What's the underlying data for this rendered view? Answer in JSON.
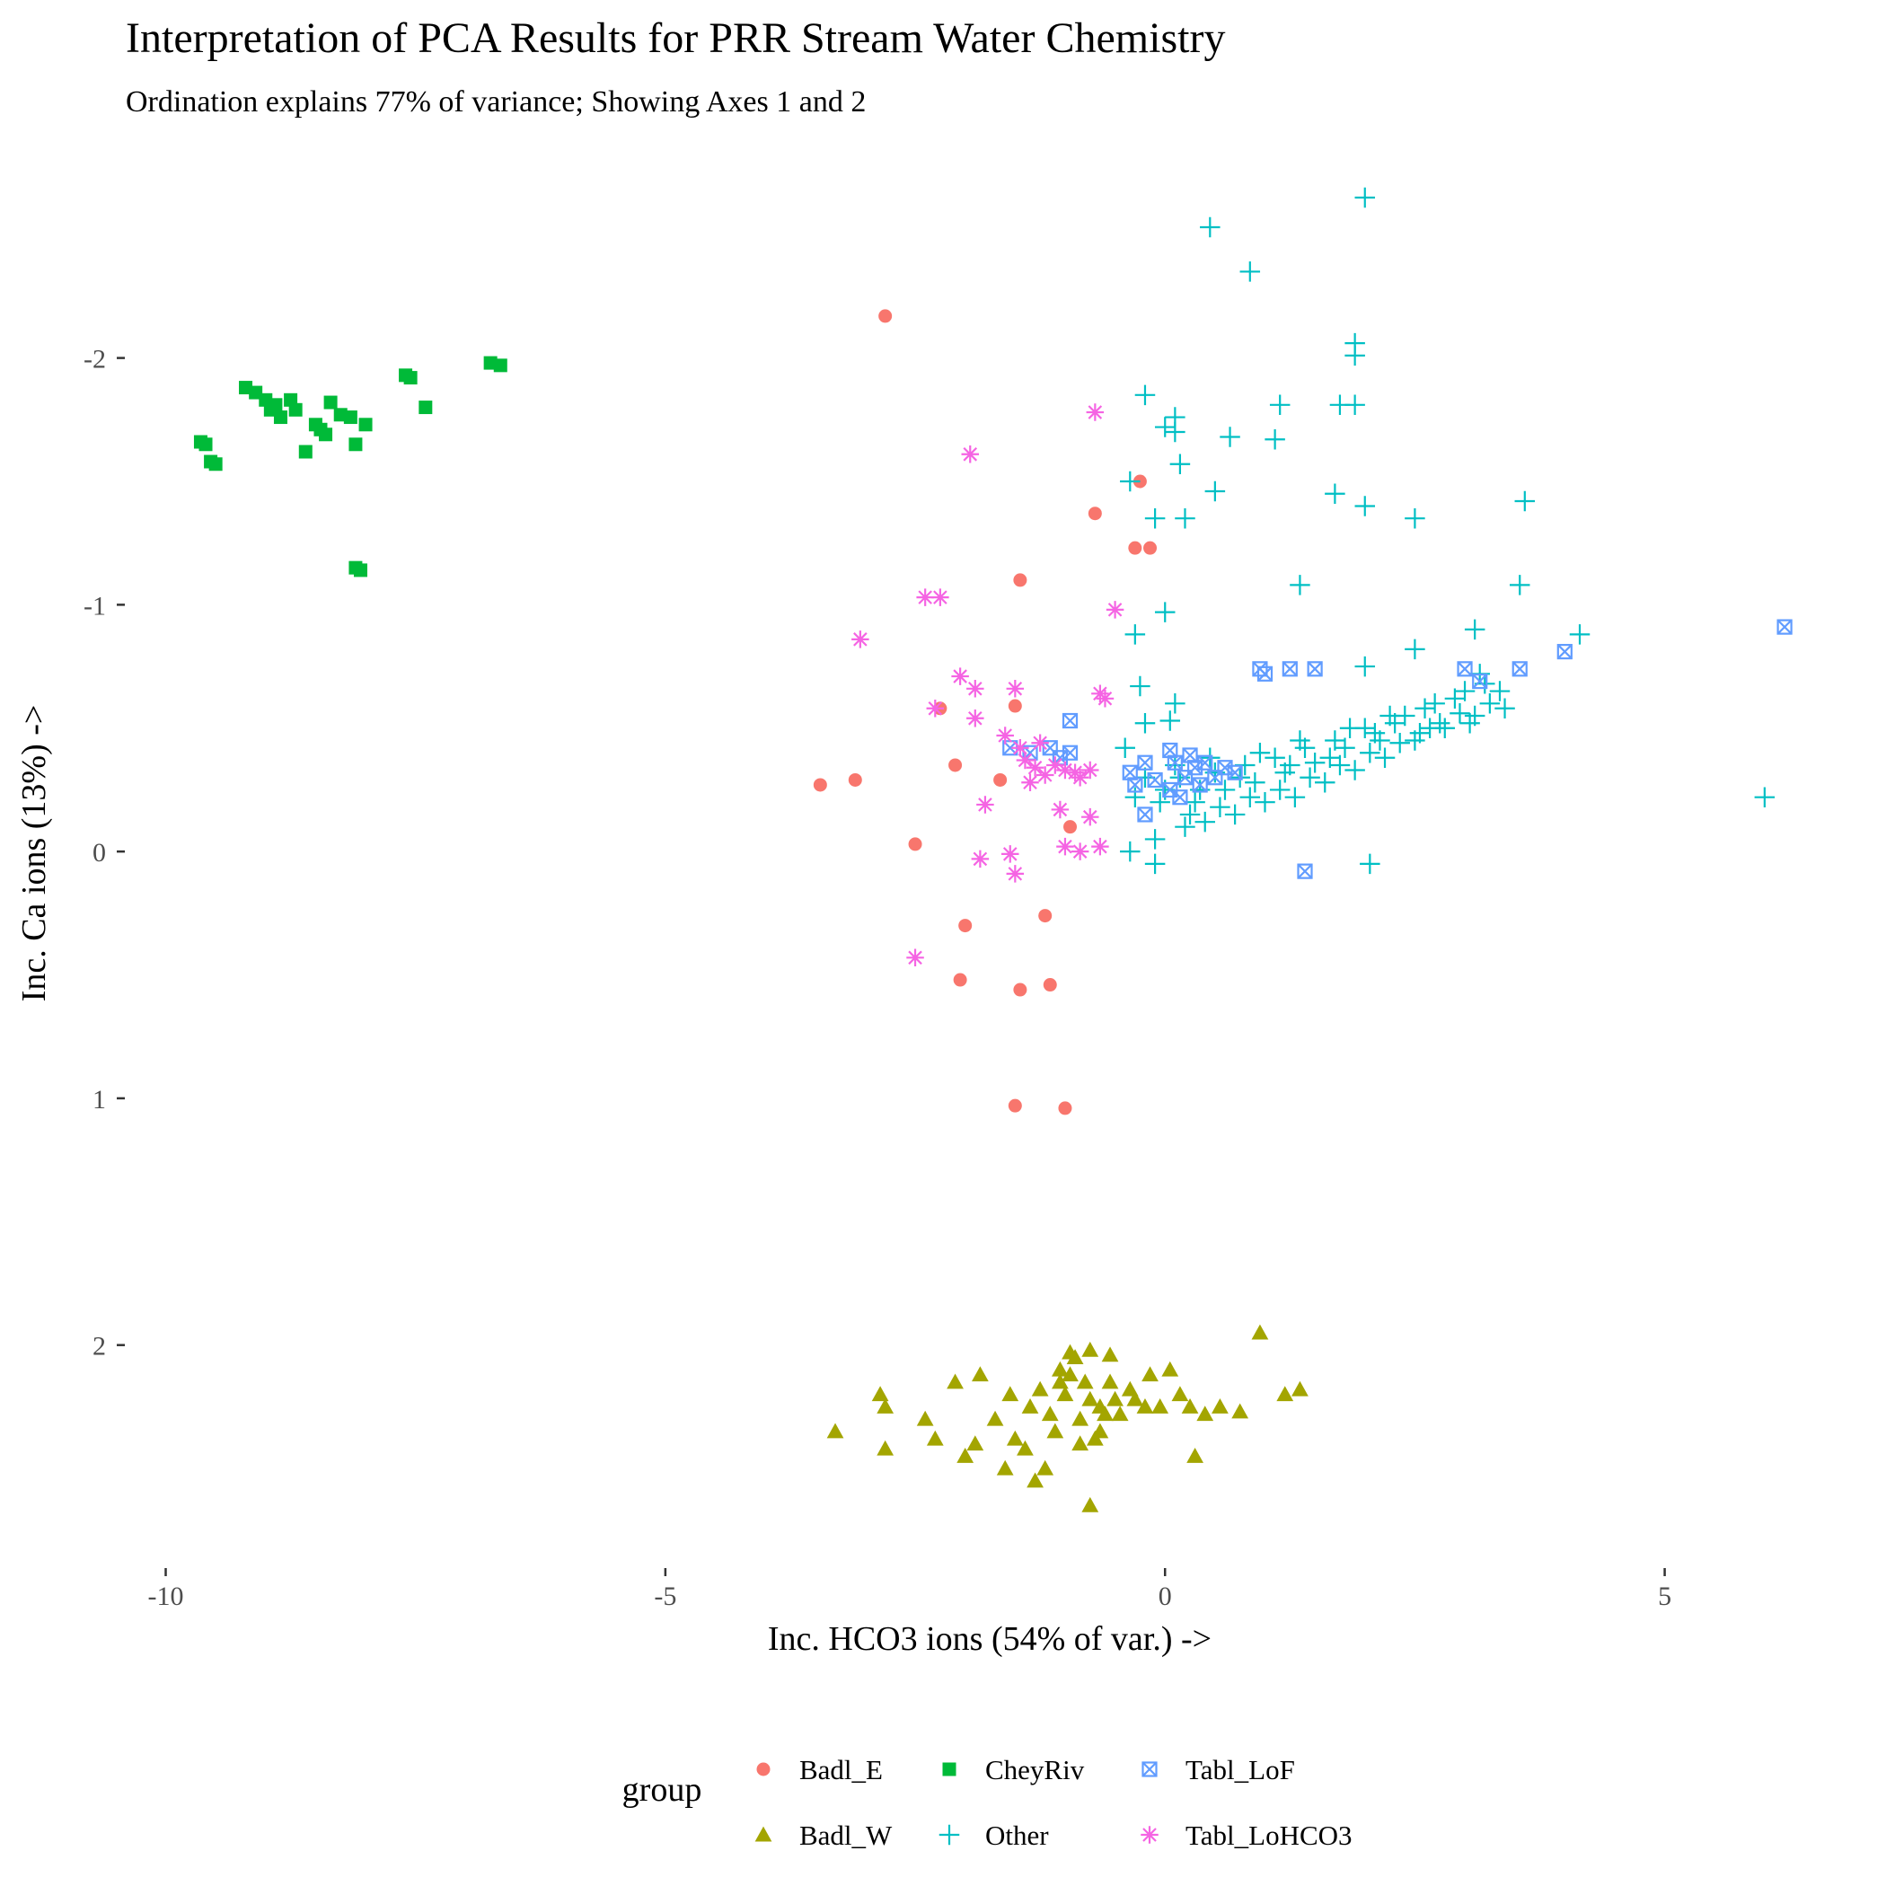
{
  "chart_data": {
    "type": "scatter",
    "title": "Interpretation of PCA Results for PRR Stream Water Chemistry",
    "subtitle": "Ordination explains 77% of variance; Showing Axes 1 and 2",
    "xlabel": "Inc. HCO3 ions (54% of var.) ->",
    "ylabel": "Inc. Ca ions (13%) ->",
    "xlim": [
      -10.4,
      6.9
    ],
    "ylim": [
      -2.65,
      2.9
    ],
    "y_reversed": true,
    "x_ticks": [
      -10,
      -5,
      0,
      5
    ],
    "x_tick_labels": [
      "-10",
      "-5",
      "0",
      "5"
    ],
    "y_ticks": [
      -2,
      -1,
      0,
      1,
      2
    ],
    "y_tick_labels": [
      "-2",
      "-1",
      "0",
      "1",
      "2"
    ],
    "grid": false,
    "legend": {
      "title": "group",
      "position": "bottom"
    },
    "series": [
      {
        "name": "Badl_E",
        "color": "#F8766D",
        "shape": "circle",
        "points": [
          [
            -2.8,
            -2.17
          ],
          [
            -0.25,
            -1.5
          ],
          [
            -0.7,
            -1.37
          ],
          [
            -0.3,
            -1.23
          ],
          [
            -0.15,
            -1.23
          ],
          [
            -1.45,
            -1.1
          ],
          [
            -2.25,
            -0.58
          ],
          [
            -1.5,
            -0.59
          ],
          [
            -2.1,
            -0.35
          ],
          [
            -1.65,
            -0.29
          ],
          [
            -3.1,
            -0.29
          ],
          [
            -3.45,
            -0.27
          ],
          [
            -0.95,
            -0.1
          ],
          [
            -2.5,
            -0.03
          ],
          [
            -1.2,
            0.26
          ],
          [
            -2.0,
            0.3
          ],
          [
            -2.05,
            0.52
          ],
          [
            -1.45,
            0.56
          ],
          [
            -1.15,
            0.54
          ],
          [
            -1.5,
            1.03
          ],
          [
            -1.0,
            1.04
          ]
        ]
      },
      {
        "name": "Badl_W",
        "color": "#A3A500",
        "shape": "triangle",
        "points": [
          [
            -3.3,
            2.35
          ],
          [
            -2.8,
            2.25
          ],
          [
            -2.85,
            2.2
          ],
          [
            -2.8,
            2.42
          ],
          [
            -2.4,
            2.3
          ],
          [
            -2.3,
            2.38
          ],
          [
            -2.1,
            2.15
          ],
          [
            -1.85,
            2.12
          ],
          [
            -2.0,
            2.45
          ],
          [
            -1.9,
            2.4
          ],
          [
            -1.7,
            2.3
          ],
          [
            -1.6,
            2.5
          ],
          [
            -1.5,
            2.38
          ],
          [
            -1.55,
            2.2
          ],
          [
            -1.35,
            2.25
          ],
          [
            -1.4,
            2.42
          ],
          [
            -1.3,
            2.55
          ],
          [
            -1.2,
            2.5
          ],
          [
            -1.25,
            2.18
          ],
          [
            -1.15,
            2.28
          ],
          [
            -1.1,
            2.35
          ],
          [
            -1.05,
            2.1
          ],
          [
            -1.0,
            2.2
          ],
          [
            -0.95,
            2.12
          ],
          [
            -0.9,
            2.05
          ],
          [
            -0.85,
            2.3
          ],
          [
            -0.8,
            2.15
          ],
          [
            -0.75,
            2.22
          ],
          [
            -0.7,
            2.38
          ],
          [
            -0.75,
            2.65
          ],
          [
            -0.65,
            2.25
          ],
          [
            -0.6,
            2.28
          ],
          [
            -0.55,
            2.15
          ],
          [
            -0.5,
            2.22
          ],
          [
            -0.45,
            2.28
          ],
          [
            -0.35,
            2.18
          ],
          [
            -0.3,
            2.22
          ],
          [
            -0.2,
            2.25
          ],
          [
            -0.15,
            2.12
          ],
          [
            -0.05,
            2.25
          ],
          [
            0.05,
            2.1
          ],
          [
            0.15,
            2.2
          ],
          [
            0.25,
            2.25
          ],
          [
            0.3,
            2.45
          ],
          [
            0.4,
            2.28
          ],
          [
            0.55,
            2.25
          ],
          [
            0.75,
            2.27
          ],
          [
            0.95,
            1.95
          ],
          [
            1.2,
            2.2
          ],
          [
            1.35,
            2.18
          ],
          [
            -0.75,
            2.02
          ],
          [
            -0.55,
            2.04
          ],
          [
            -0.95,
            2.03
          ],
          [
            -1.05,
            2.15
          ],
          [
            -0.85,
            2.4
          ],
          [
            -0.65,
            2.35
          ]
        ]
      },
      {
        "name": "CheyRiv",
        "color": "#00BA38",
        "shape": "square",
        "points": [
          [
            -9.65,
            -1.66
          ],
          [
            -9.6,
            -1.65
          ],
          [
            -9.55,
            -1.58
          ],
          [
            -9.5,
            -1.57
          ],
          [
            -9.2,
            -1.88
          ],
          [
            -9.1,
            -1.86
          ],
          [
            -9.0,
            -1.83
          ],
          [
            -8.95,
            -1.79
          ],
          [
            -8.9,
            -1.81
          ],
          [
            -8.85,
            -1.76
          ],
          [
            -8.75,
            -1.83
          ],
          [
            -8.7,
            -1.79
          ],
          [
            -8.6,
            -1.62
          ],
          [
            -8.5,
            -1.73
          ],
          [
            -8.45,
            -1.71
          ],
          [
            -8.4,
            -1.69
          ],
          [
            -8.35,
            -1.82
          ],
          [
            -8.25,
            -1.77
          ],
          [
            -8.15,
            -1.76
          ],
          [
            -8.1,
            -1.65
          ],
          [
            -8.0,
            -1.73
          ],
          [
            -8.1,
            -1.15
          ],
          [
            -8.05,
            -1.14
          ],
          [
            -7.6,
            -1.93
          ],
          [
            -7.55,
            -1.92
          ],
          [
            -7.4,
            -1.8
          ],
          [
            -6.75,
            -1.98
          ],
          [
            -6.65,
            -1.97
          ]
        ]
      },
      {
        "name": "Other",
        "color": "#00BFC4",
        "shape": "plus",
        "points": [
          [
            2.0,
            -2.65
          ],
          [
            0.45,
            -2.53
          ],
          [
            0.85,
            -2.35
          ],
          [
            1.9,
            -2.06
          ],
          [
            1.9,
            -2.01
          ],
          [
            -0.2,
            -1.85
          ],
          [
            1.15,
            -1.81
          ],
          [
            1.75,
            -1.81
          ],
          [
            1.9,
            -1.81
          ],
          [
            0.1,
            -1.76
          ],
          [
            0.0,
            -1.72
          ],
          [
            0.1,
            -1.7
          ],
          [
            0.65,
            -1.68
          ],
          [
            1.1,
            -1.67
          ],
          [
            0.15,
            -1.57
          ],
          [
            -0.35,
            -1.5
          ],
          [
            0.5,
            -1.46
          ],
          [
            1.7,
            -1.45
          ],
          [
            2.0,
            -1.4
          ],
          [
            3.6,
            -1.42
          ],
          [
            -0.1,
            -1.35
          ],
          [
            0.2,
            -1.35
          ],
          [
            2.5,
            -1.35
          ],
          [
            1.35,
            -1.08
          ],
          [
            3.55,
            -1.08
          ],
          [
            0.0,
            -0.97
          ],
          [
            -0.3,
            -0.88
          ],
          [
            4.15,
            -0.88
          ],
          [
            3.1,
            -0.9
          ],
          [
            2.5,
            -0.82
          ],
          [
            2.0,
            -0.75
          ],
          [
            -0.25,
            -0.67
          ],
          [
            0.1,
            -0.6
          ],
          [
            -0.2,
            -0.52
          ],
          [
            0.05,
            -0.53
          ],
          [
            -0.4,
            -0.42
          ],
          [
            6.0,
            -0.22
          ],
          [
            2.05,
            0.05
          ],
          [
            -0.1,
            -0.05
          ],
          [
            -0.1,
            0.05
          ],
          [
            -0.35,
            0.0
          ],
          [
            0.2,
            -0.1
          ],
          [
            0.4,
            -0.12
          ],
          [
            0.7,
            -0.15
          ],
          [
            1.0,
            -0.2
          ],
          [
            1.3,
            -0.22
          ],
          [
            1.6,
            -0.28
          ],
          [
            1.9,
            -0.33
          ],
          [
            2.2,
            -0.38
          ],
          [
            2.5,
            -0.45
          ],
          [
            2.8,
            -0.5
          ],
          [
            3.1,
            -0.55
          ],
          [
            3.4,
            -0.58
          ],
          [
            0.0,
            -0.25
          ],
          [
            0.3,
            -0.2
          ],
          [
            0.6,
            -0.25
          ],
          [
            0.9,
            -0.28
          ],
          [
            1.2,
            -0.32
          ],
          [
            1.5,
            -0.36
          ],
          [
            1.8,
            -0.42
          ],
          [
            2.1,
            -0.48
          ],
          [
            2.4,
            -0.55
          ],
          [
            2.7,
            -0.6
          ],
          [
            3.0,
            -0.65
          ],
          [
            -0.2,
            -0.3
          ],
          [
            -0.3,
            -0.22
          ],
          [
            0.15,
            -0.3
          ],
          [
            0.5,
            -0.32
          ],
          [
            0.8,
            -0.35
          ],
          [
            1.1,
            -0.38
          ],
          [
            1.4,
            -0.42
          ],
          [
            1.7,
            -0.45
          ],
          [
            2.0,
            -0.5
          ],
          [
            2.3,
            -0.52
          ],
          [
            2.6,
            -0.58
          ],
          [
            2.9,
            -0.62
          ],
          [
            3.2,
            -0.68
          ],
          [
            0.25,
            -0.15
          ],
          [
            0.55,
            -0.18
          ],
          [
            0.85,
            -0.22
          ],
          [
            1.15,
            -0.25
          ],
          [
            1.45,
            -0.3
          ],
          [
            1.75,
            -0.35
          ],
          [
            2.05,
            -0.4
          ],
          [
            2.35,
            -0.44
          ],
          [
            2.65,
            -0.5
          ],
          [
            2.95,
            -0.56
          ],
          [
            3.25,
            -0.6
          ],
          [
            -0.05,
            -0.2
          ],
          [
            0.35,
            -0.25
          ],
          [
            0.75,
            -0.3
          ],
          [
            1.25,
            -0.35
          ],
          [
            1.65,
            -0.38
          ],
          [
            2.15,
            -0.45
          ],
          [
            2.55,
            -0.48
          ],
          [
            3.05,
            -0.52
          ],
          [
            3.35,
            -0.65
          ],
          [
            0.1,
            -0.35
          ],
          [
            0.45,
            -0.38
          ],
          [
            0.95,
            -0.4
          ],
          [
            1.35,
            -0.45
          ],
          [
            1.85,
            -0.5
          ],
          [
            2.25,
            -0.55
          ],
          [
            2.75,
            -0.52
          ],
          [
            3.15,
            -0.72
          ]
        ]
      },
      {
        "name": "Tabl_LoF",
        "color": "#619CFF",
        "shape": "square-x",
        "points": [
          [
            6.2,
            -0.91
          ],
          [
            4.0,
            -0.81
          ],
          [
            3.55,
            -0.74
          ],
          [
            3.0,
            -0.74
          ],
          [
            3.15,
            -0.69
          ],
          [
            0.95,
            -0.74
          ],
          [
            1.0,
            -0.72
          ],
          [
            1.25,
            -0.74
          ],
          [
            1.5,
            -0.74
          ],
          [
            -0.95,
            -0.53
          ],
          [
            -1.55,
            -0.42
          ],
          [
            -1.35,
            -0.4
          ],
          [
            -1.15,
            -0.42
          ],
          [
            -1.05,
            -0.38
          ],
          [
            -0.95,
            -0.4
          ],
          [
            -0.35,
            -0.32
          ],
          [
            -0.3,
            -0.27
          ],
          [
            -0.2,
            -0.36
          ],
          [
            -0.1,
            -0.29
          ],
          [
            0.05,
            -0.41
          ],
          [
            0.1,
            -0.36
          ],
          [
            0.2,
            -0.3
          ],
          [
            0.25,
            -0.39
          ],
          [
            0.3,
            -0.34
          ],
          [
            0.35,
            -0.27
          ],
          [
            0.4,
            -0.36
          ],
          [
            0.5,
            -0.3
          ],
          [
            0.6,
            -0.34
          ],
          [
            0.7,
            -0.32
          ],
          [
            -0.2,
            -0.15
          ],
          [
            0.15,
            -0.22
          ],
          [
            0.05,
            -0.25
          ],
          [
            1.4,
            0.08
          ]
        ]
      },
      {
        "name": "Tabl_LoHCO3",
        "color": "#F564E3",
        "shape": "asterisk",
        "points": [
          [
            -0.7,
            -1.78
          ],
          [
            -1.95,
            -1.61
          ],
          [
            -2.4,
            -1.03
          ],
          [
            -2.25,
            -1.03
          ],
          [
            -0.5,
            -0.98
          ],
          [
            -3.05,
            -0.86
          ],
          [
            -2.05,
            -0.71
          ],
          [
            -1.9,
            -0.66
          ],
          [
            -1.5,
            -0.66
          ],
          [
            -0.65,
            -0.64
          ],
          [
            -0.6,
            -0.62
          ],
          [
            -2.3,
            -0.58
          ],
          [
            -1.9,
            -0.54
          ],
          [
            -1.6,
            -0.47
          ],
          [
            -1.45,
            -0.42
          ],
          [
            -1.25,
            -0.44
          ],
          [
            -1.4,
            -0.37
          ],
          [
            -1.3,
            -0.34
          ],
          [
            -1.2,
            -0.31
          ],
          [
            -1.1,
            -0.35
          ],
          [
            -1.0,
            -0.33
          ],
          [
            -0.9,
            -0.32
          ],
          [
            -0.75,
            -0.33
          ],
          [
            -1.35,
            -0.28
          ],
          [
            -0.85,
            -0.3
          ],
          [
            -1.8,
            -0.19
          ],
          [
            -1.05,
            -0.17
          ],
          [
            -0.75,
            -0.14
          ],
          [
            -1.55,
            0.01
          ],
          [
            -1.85,
            0.03
          ],
          [
            -1.0,
            -0.02
          ],
          [
            -0.85,
            0.0
          ],
          [
            -0.65,
            -0.02
          ],
          [
            -1.5,
            0.09
          ],
          [
            -2.5,
            0.43
          ]
        ]
      }
    ]
  }
}
